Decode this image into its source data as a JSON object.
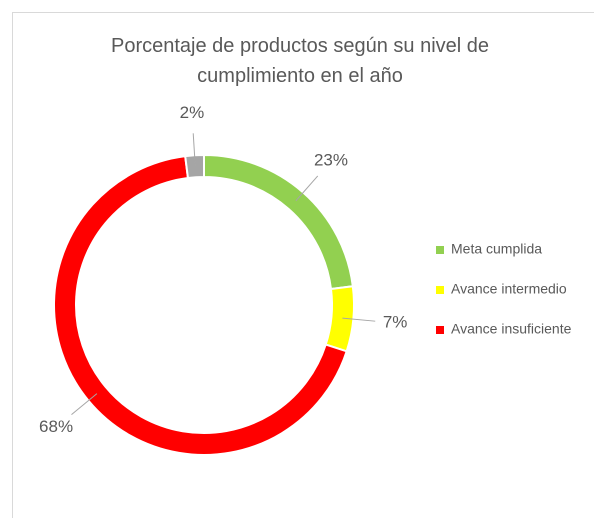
{
  "chart_data": {
    "type": "donut",
    "title": "Porcentaje de productos según su nivel de cumplimiento en el año",
    "categories": [
      "Meta cumplida",
      "Avance intermedio",
      "Avance insuficiente",
      null
    ],
    "values": [
      23,
      7,
      68,
      2
    ],
    "value_labels": [
      "23%",
      "7%",
      "68%",
      "2%"
    ],
    "colors": [
      "#92d050",
      "#ffff00",
      "#ff0000",
      "#a5a5a5"
    ],
    "legend": "right"
  }
}
